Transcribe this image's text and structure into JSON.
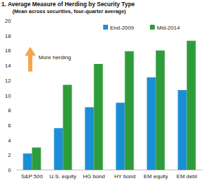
{
  "chart_data": {
    "type": "bar",
    "title": "1. Average Measure of Herding by Security Type",
    "subtitle": "(Mean across securities, four-quarter average)",
    "annotation": "More herding",
    "categories": [
      "S&P 500",
      "U.S. equity",
      "HG bond",
      "HY bond",
      "EM equity",
      "EM debt"
    ],
    "series": [
      {
        "name": "End-2009",
        "color": "#1a8fd6",
        "values": [
          2.2,
          5.6,
          8.4,
          9.0,
          12.4,
          10.7
        ]
      },
      {
        "name": "Mid-2014",
        "color": "#2f9c3b",
        "values": [
          3.0,
          11.4,
          14.2,
          15.9,
          16.0,
          17.3
        ]
      }
    ],
    "ylim": [
      0,
      20
    ],
    "yticks": [
      0,
      2,
      4,
      6,
      8,
      10,
      12,
      14,
      16,
      18,
      20
    ],
    "grid": false,
    "legend": "top-right"
  }
}
